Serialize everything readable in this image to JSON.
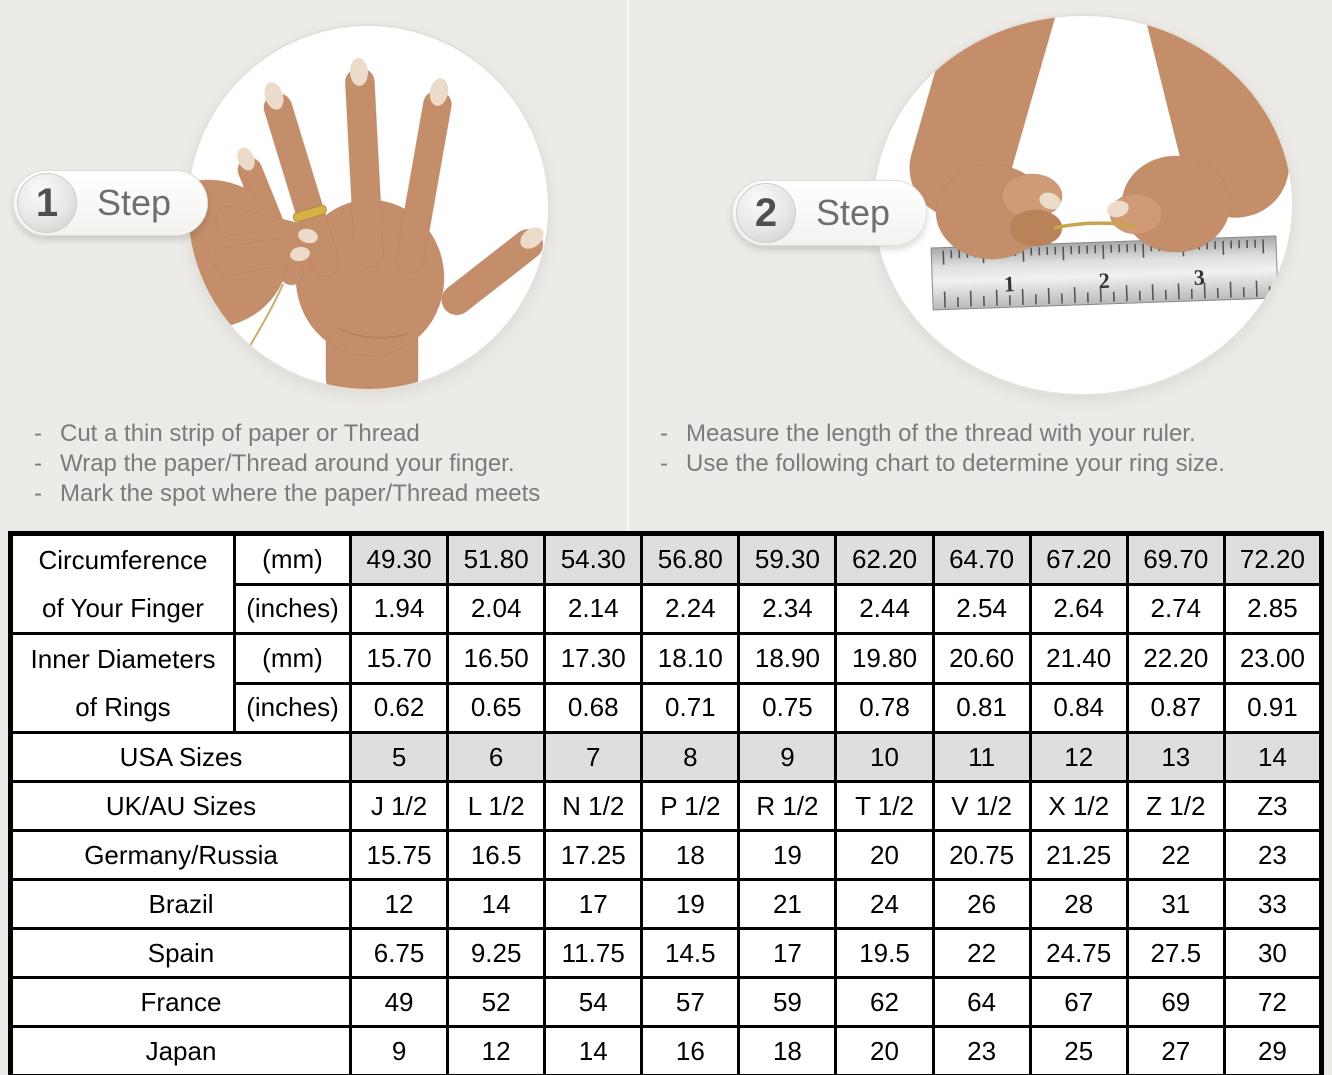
{
  "steps": [
    {
      "number": "1",
      "label": "Step",
      "bullets": [
        "Cut a thin strip of paper or Thread",
        "Wrap the paper/Thread around your finger.",
        "Mark the spot where the paper/Thread meets"
      ]
    },
    {
      "number": "2",
      "label": "Step",
      "bullets": [
        "Measure the length of the thread with your ruler.",
        "Use the following chart to determine your ring size."
      ],
      "ruler_numbers": [
        "1",
        "2",
        "3"
      ]
    }
  ],
  "chart_data": {
    "type": "table",
    "title": "Ring size conversion chart",
    "rows": [
      {
        "label": "Circumference of Your Finger",
        "label_lines": [
          "Circumference",
          "of Your Finger"
        ],
        "label_rowspan": 2,
        "unit": "(mm)",
        "shaded": true,
        "values": [
          "49.30",
          "51.80",
          "54.30",
          "56.80",
          "59.30",
          "62.20",
          "64.70",
          "67.20",
          "69.70",
          "72.20"
        ]
      },
      {
        "label": "Circumference of Your Finger",
        "label_continued": true,
        "unit": "(inches)",
        "shaded": false,
        "values": [
          "1.94",
          "2.04",
          "2.14",
          "2.24",
          "2.34",
          "2.44",
          "2.54",
          "2.64",
          "2.74",
          "2.85"
        ]
      },
      {
        "label": "Inner Diameters of Rings",
        "label_lines": [
          "Inner Diameters",
          "of Rings"
        ],
        "label_rowspan": 2,
        "unit": "(mm)",
        "shaded": false,
        "values": [
          "15.70",
          "16.50",
          "17.30",
          "18.10",
          "18.90",
          "19.80",
          "20.60",
          "21.40",
          "22.20",
          "23.00"
        ]
      },
      {
        "label": "Inner Diameters of Rings",
        "label_continued": true,
        "unit": "(inches)",
        "shaded": false,
        "values": [
          "0.62",
          "0.65",
          "0.68",
          "0.71",
          "0.75",
          "0.78",
          "0.81",
          "0.84",
          "0.87",
          "0.91"
        ]
      },
      {
        "label": "USA Sizes",
        "shaded": true,
        "values": [
          "5",
          "6",
          "7",
          "8",
          "9",
          "10",
          "11",
          "12",
          "13",
          "14"
        ]
      },
      {
        "label": "UK/AU Sizes",
        "shaded": false,
        "values": [
          "J 1/2",
          "L 1/2",
          "N 1/2",
          "P 1/2",
          "R 1/2",
          "T 1/2",
          "V 1/2",
          "X 1/2",
          "Z 1/2",
          "Z3"
        ]
      },
      {
        "label": "Germany/Russia",
        "shaded": false,
        "values": [
          "15.75",
          "16.5",
          "17.25",
          "18",
          "19",
          "20",
          "20.75",
          "21.25",
          "22",
          "23"
        ]
      },
      {
        "label": "Brazil",
        "shaded": false,
        "values": [
          "12",
          "14",
          "17",
          "19",
          "21",
          "24",
          "26",
          "28",
          "31",
          "33"
        ]
      },
      {
        "label": "Spain",
        "shaded": false,
        "values": [
          "6.75",
          "9.25",
          "11.75",
          "14.5",
          "17",
          "19.5",
          "22",
          "24.75",
          "27.5",
          "30"
        ]
      },
      {
        "label": "France",
        "shaded": false,
        "values": [
          "49",
          "52",
          "54",
          "57",
          "59",
          "62",
          "64",
          "67",
          "69",
          "72"
        ]
      },
      {
        "label": "Japan",
        "shaded": false,
        "values": [
          "9",
          "12",
          "14",
          "16",
          "18",
          "20",
          "23",
          "25",
          "27",
          "29"
        ]
      }
    ]
  },
  "colors": {
    "page_background": "#edebe7",
    "table_border": "#000000",
    "shaded_cell": "#dedede",
    "bullet_text": "#7b7b7b",
    "step_text": "#6e6e6e",
    "skin": "#c38e69",
    "nail": "#ecdbca",
    "ring_gold": "#d8b049",
    "thread_gold": "#c9a44e",
    "ruler_silver": "#d9d9d9"
  }
}
